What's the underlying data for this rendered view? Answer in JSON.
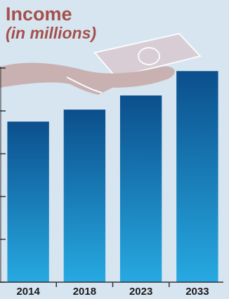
{
  "chart_data": {
    "type": "bar",
    "title": "Income",
    "subtitle": "(in millions)",
    "categories": [
      "2014",
      "2018",
      "2023",
      "2033"
    ],
    "values": [
      3.75,
      4.03,
      4.36,
      4.93
    ],
    "color": "#0b4f8c",
    "ylim": [
      0,
      5
    ],
    "yticks": [
      0,
      1,
      2,
      3,
      4,
      5
    ]
  }
}
